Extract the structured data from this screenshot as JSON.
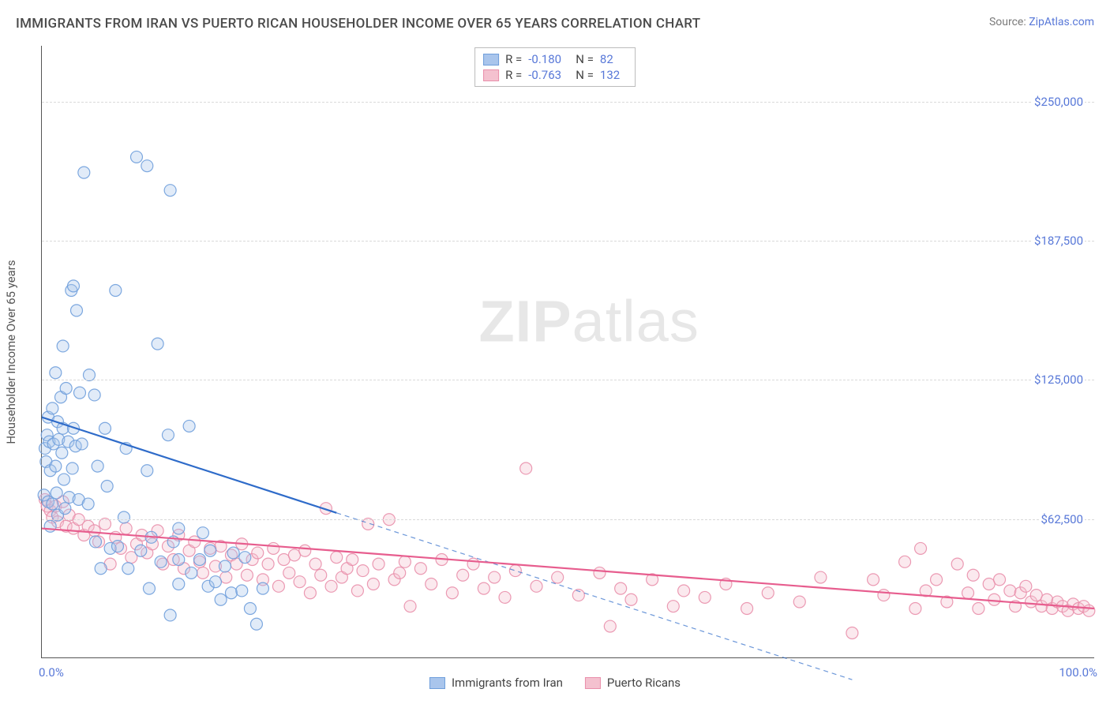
{
  "title": "IMMIGRANTS FROM IRAN VS PUERTO RICAN HOUSEHOLDER INCOME OVER 65 YEARS CORRELATION CHART",
  "source_prefix": "Source: ",
  "source_name": "ZipAtlas.com",
  "y_axis_label": "Householder Income Over 65 years",
  "watermark_bold": "ZIP",
  "watermark_thin": "atlas",
  "chart": {
    "type": "scatter",
    "xlim": [
      0,
      100
    ],
    "ylim": [
      0,
      275000
    ],
    "x_ticks": [
      {
        "v": 0,
        "label": "0.0%"
      },
      {
        "v": 100,
        "label": "100.0%"
      }
    ],
    "y_gridlines": [
      62500,
      125000,
      187500,
      250000
    ],
    "y_tick_labels": [
      {
        "v": 62500,
        "label": "$62,500"
      },
      {
        "v": 125000,
        "label": "$125,000"
      },
      {
        "v": 187500,
        "label": "$187,500"
      },
      {
        "v": 250000,
        "label": "$250,000"
      }
    ],
    "background_color": "#ffffff",
    "grid_color": "#d9d9d9",
    "marker_radius": 7.5,
    "marker_fill_opacity": 0.35,
    "marker_stroke_opacity": 0.9,
    "marker_stroke_width": 1.2,
    "series": [
      {
        "id": "iran",
        "label": "Immigrants from Iran",
        "color_fill": "#a9c5ec",
        "color_stroke": "#6f9edb",
        "line_color": "#2e6bc9",
        "line_width": 2.2,
        "R": "-0.180",
        "N": "82",
        "trend_solid": {
          "x1": 0,
          "y1": 108000,
          "x2": 28,
          "y2": 65000
        },
        "trend_dashed": {
          "x1": 28,
          "y1": 65000,
          "x2": 77,
          "y2": -10000
        },
        "points": [
          [
            0.2,
            73000
          ],
          [
            0.3,
            94000
          ],
          [
            0.4,
            88000
          ],
          [
            0.5,
            100000
          ],
          [
            0.6,
            108000
          ],
          [
            0.6,
            70000
          ],
          [
            0.7,
            97000
          ],
          [
            0.8,
            84000
          ],
          [
            0.8,
            59000
          ],
          [
            1.0,
            112000
          ],
          [
            1.0,
            69000
          ],
          [
            1.1,
            96000
          ],
          [
            1.3,
            128000
          ],
          [
            1.3,
            86000
          ],
          [
            1.4,
            74000
          ],
          [
            1.5,
            106000
          ],
          [
            1.5,
            64000
          ],
          [
            1.6,
            98000
          ],
          [
            1.8,
            117000
          ],
          [
            1.9,
            92000
          ],
          [
            2.0,
            103000
          ],
          [
            2.0,
            140000
          ],
          [
            2.1,
            80000
          ],
          [
            2.2,
            67000
          ],
          [
            2.3,
            121000
          ],
          [
            2.5,
            97000
          ],
          [
            2.6,
            72000
          ],
          [
            2.8,
            165000
          ],
          [
            2.9,
            85000
          ],
          [
            3.0,
            103000
          ],
          [
            3.0,
            167000
          ],
          [
            3.2,
            95000
          ],
          [
            3.3,
            156000
          ],
          [
            3.5,
            71000
          ],
          [
            3.6,
            119000
          ],
          [
            3.8,
            96000
          ],
          [
            4.0,
            218000
          ],
          [
            4.4,
            69000
          ],
          [
            4.5,
            127000
          ],
          [
            5.0,
            118000
          ],
          [
            5.1,
            52000
          ],
          [
            5.3,
            86000
          ],
          [
            5.6,
            40000
          ],
          [
            6.0,
            103000
          ],
          [
            6.2,
            77000
          ],
          [
            6.5,
            49000
          ],
          [
            7.0,
            165000
          ],
          [
            7.2,
            50000
          ],
          [
            7.8,
            63000
          ],
          [
            8.0,
            94000
          ],
          [
            8.2,
            40000
          ],
          [
            9.0,
            225000
          ],
          [
            9.4,
            48000
          ],
          [
            10.0,
            84000
          ],
          [
            10.0,
            221000
          ],
          [
            10.2,
            31000
          ],
          [
            10.4,
            54000
          ],
          [
            11.0,
            141000
          ],
          [
            11.3,
            43000
          ],
          [
            12.0,
            100000
          ],
          [
            12.2,
            19000
          ],
          [
            12.2,
            210000
          ],
          [
            12.5,
            52000
          ],
          [
            13.0,
            44000
          ],
          [
            13.0,
            58000
          ],
          [
            13.0,
            33000
          ],
          [
            14.0,
            104000
          ],
          [
            14.2,
            38000
          ],
          [
            15.0,
            44000
          ],
          [
            15.3,
            56000
          ],
          [
            15.8,
            32000
          ],
          [
            16.0,
            48000
          ],
          [
            16.5,
            34000
          ],
          [
            17.0,
            26000
          ],
          [
            17.4,
            41000
          ],
          [
            18.0,
            29000
          ],
          [
            18.2,
            47000
          ],
          [
            19.0,
            30000
          ],
          [
            19.3,
            45000
          ],
          [
            19.8,
            22000
          ],
          [
            20.4,
            15000
          ],
          [
            21.0,
            31000
          ]
        ]
      },
      {
        "id": "pr",
        "label": "Puerto Ricans",
        "color_fill": "#f4c1cf",
        "color_stroke": "#e98fab",
        "line_color": "#e75d8e",
        "line_width": 2.2,
        "R": "-0.763",
        "N": "132",
        "trend_solid": {
          "x1": 0,
          "y1": 58000,
          "x2": 100,
          "y2": 22000
        },
        "points": [
          [
            0.3,
            71000
          ],
          [
            0.5,
            68000
          ],
          [
            0.8,
            66000
          ],
          [
            1.0,
            63000
          ],
          [
            1.3,
            68000
          ],
          [
            1.5,
            61000
          ],
          [
            2.0,
            70000
          ],
          [
            2.3,
            59000
          ],
          [
            2.6,
            64000
          ],
          [
            3.0,
            58000
          ],
          [
            3.5,
            62000
          ],
          [
            4.0,
            55000
          ],
          [
            4.4,
            59000
          ],
          [
            5.0,
            57000
          ],
          [
            5.4,
            52000
          ],
          [
            6.0,
            60000
          ],
          [
            6.5,
            42000
          ],
          [
            7.0,
            54000
          ],
          [
            7.5,
            49000
          ],
          [
            8.0,
            58000
          ],
          [
            8.5,
            45000
          ],
          [
            9.0,
            51000
          ],
          [
            9.5,
            55000
          ],
          [
            10.0,
            47000
          ],
          [
            10.5,
            51000
          ],
          [
            11.0,
            57000
          ],
          [
            11.5,
            42000
          ],
          [
            12.0,
            50000
          ],
          [
            12.5,
            44000
          ],
          [
            13.0,
            55000
          ],
          [
            13.5,
            40000
          ],
          [
            14.0,
            48000
          ],
          [
            14.5,
            52000
          ],
          [
            15.0,
            43000
          ],
          [
            15.3,
            38000
          ],
          [
            16.0,
            49000
          ],
          [
            16.5,
            41000
          ],
          [
            17.0,
            50000
          ],
          [
            17.5,
            36000
          ],
          [
            18.0,
            46000
          ],
          [
            18.5,
            42000
          ],
          [
            19.0,
            51000
          ],
          [
            19.5,
            37000
          ],
          [
            20.0,
            44000
          ],
          [
            20.5,
            47000
          ],
          [
            21.0,
            35000
          ],
          [
            21.5,
            42000
          ],
          [
            22.0,
            49000
          ],
          [
            22.5,
            32000
          ],
          [
            23.0,
            44000
          ],
          [
            23.5,
            38000
          ],
          [
            24.0,
            46000
          ],
          [
            24.5,
            34000
          ],
          [
            25.0,
            48000
          ],
          [
            25.5,
            29000
          ],
          [
            26.0,
            42000
          ],
          [
            26.5,
            37000
          ],
          [
            27.0,
            67000
          ],
          [
            27.5,
            32000
          ],
          [
            28.0,
            45000
          ],
          [
            28.5,
            36000
          ],
          [
            29.0,
            40000
          ],
          [
            29.5,
            44000
          ],
          [
            30.0,
            30000
          ],
          [
            30.5,
            39000
          ],
          [
            31.0,
            60000
          ],
          [
            31.5,
            33000
          ],
          [
            32.0,
            42000
          ],
          [
            33.0,
            62000
          ],
          [
            33.5,
            35000
          ],
          [
            34.0,
            38000
          ],
          [
            34.5,
            43000
          ],
          [
            35.0,
            23000
          ],
          [
            36.0,
            40000
          ],
          [
            37.0,
            33000
          ],
          [
            38.0,
            44000
          ],
          [
            39.0,
            29000
          ],
          [
            40.0,
            37000
          ],
          [
            41.0,
            42000
          ],
          [
            42.0,
            31000
          ],
          [
            43.0,
            36000
          ],
          [
            44.0,
            27000
          ],
          [
            45.0,
            39000
          ],
          [
            46.0,
            85000
          ],
          [
            47.0,
            32000
          ],
          [
            49.0,
            36000
          ],
          [
            51.0,
            28000
          ],
          [
            53.0,
            38000
          ],
          [
            54.0,
            14000
          ],
          [
            55.0,
            31000
          ],
          [
            56.0,
            26000
          ],
          [
            58.0,
            35000
          ],
          [
            60.0,
            23000
          ],
          [
            61.0,
            30000
          ],
          [
            63.0,
            27000
          ],
          [
            65.0,
            33000
          ],
          [
            67.0,
            22000
          ],
          [
            69.0,
            29000
          ],
          [
            72.0,
            25000
          ],
          [
            74.0,
            36000
          ],
          [
            77.0,
            11000
          ],
          [
            79.0,
            35000
          ],
          [
            80.0,
            28000
          ],
          [
            82.0,
            43000
          ],
          [
            83.0,
            22000
          ],
          [
            83.5,
            49000
          ],
          [
            84.0,
            30000
          ],
          [
            85.0,
            35000
          ],
          [
            86.0,
            25000
          ],
          [
            87.0,
            42000
          ],
          [
            88.0,
            29000
          ],
          [
            88.5,
            37000
          ],
          [
            89.0,
            22000
          ],
          [
            90.0,
            33000
          ],
          [
            90.5,
            26000
          ],
          [
            91.0,
            35000
          ],
          [
            92.0,
            30000
          ],
          [
            92.5,
            23000
          ],
          [
            93.0,
            29000
          ],
          [
            93.5,
            32000
          ],
          [
            94.0,
            25000
          ],
          [
            94.5,
            28000
          ],
          [
            95.0,
            23000
          ],
          [
            95.5,
            26000
          ],
          [
            96.0,
            22000
          ],
          [
            96.5,
            25000
          ],
          [
            97.0,
            23000
          ],
          [
            97.5,
            21000
          ],
          [
            98.0,
            24000
          ],
          [
            98.5,
            22000
          ],
          [
            99.0,
            23000
          ],
          [
            99.5,
            21000
          ]
        ]
      }
    ]
  },
  "legend_top": {
    "r_label": "R =",
    "n_label": "N ="
  }
}
